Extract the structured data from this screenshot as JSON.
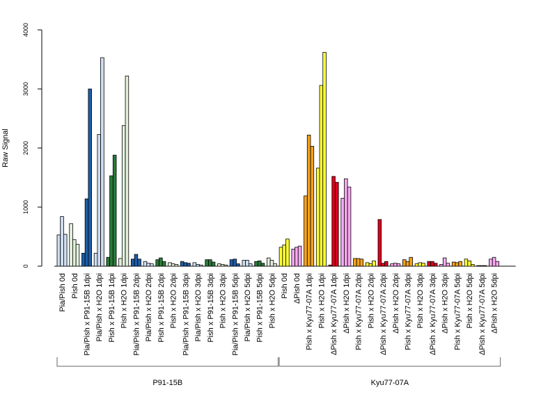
{
  "chart_data": {
    "type": "bar",
    "ylabel": "Raw Signal",
    "ylim": [
      0,
      4000
    ],
    "yticks": [
      "0",
      "1000",
      "2000",
      "3000",
      "4000"
    ],
    "bars_per_category": 3,
    "categories": [
      {
        "label": "Pia/Pish 0d",
        "values": [
          530,
          840,
          540
        ],
        "color": "#cfdef2"
      },
      {
        "label": "Pish 0d",
        "values": [
          720,
          450,
          370
        ],
        "color": "#e2f0dc"
      },
      {
        "label": "Pia/Pish x P91-15B 1dpi",
        "values": [
          220,
          1140,
          3000
        ],
        "color": "#1f5ea8"
      },
      {
        "label": "Pia/Pish x H2O 1dpi",
        "values": [
          220,
          2230,
          3530
        ],
        "color": "#cfdef2"
      },
      {
        "label": "Pish x P91-15B 1dpi",
        "values": [
          150,
          1530,
          1880
        ],
        "color": "#2b7a3b"
      },
      {
        "label": "Pish x H2O 1dpi",
        "values": [
          130,
          2380,
          3220
        ],
        "color": "#e2f0dc"
      },
      {
        "label": "Pia/Pish x P91-15B 2dpi",
        "values": [
          120,
          200,
          120
        ],
        "color": "#1f5ea8"
      },
      {
        "label": "Pia/Pish x H2O 2dpi",
        "values": [
          80,
          50,
          40
        ],
        "color": "#cfdef2"
      },
      {
        "label": "Pish x P91-15B 2dpi",
        "values": [
          110,
          140,
          80
        ],
        "color": "#2b7a3b"
      },
      {
        "label": "Pish x H2O 2dpi",
        "values": [
          60,
          40,
          30
        ],
        "color": "#e2f0dc"
      },
      {
        "label": "Pia/Pish x P91-15B 3dpi",
        "values": [
          80,
          60,
          50
        ],
        "color": "#1f5ea8"
      },
      {
        "label": "Pia/Pish x H2O 3dpi",
        "values": [
          60,
          30,
          20
        ],
        "color": "#cfdef2"
      },
      {
        "label": "Pish x P91-15B 3dpi",
        "values": [
          110,
          110,
          70
        ],
        "color": "#2b7a3b"
      },
      {
        "label": "Pish x H2O 3dpi",
        "values": [
          40,
          30,
          20
        ],
        "color": "#e2f0dc"
      },
      {
        "label": "Pia/Pish x P91-15B 5dpi",
        "values": [
          110,
          120,
          40
        ],
        "color": "#1f5ea8"
      },
      {
        "label": "Pia/Pish x H2O 5dpi",
        "values": [
          100,
          100,
          40
        ],
        "color": "#cfdef2"
      },
      {
        "label": "Pish x P91-15B 5dpi",
        "values": [
          80,
          90,
          50
        ],
        "color": "#2b7a3b"
      },
      {
        "label": "Pish x H2O 5dpi",
        "values": [
          140,
          100,
          40
        ],
        "color": "#e2f0dc"
      },
      {
        "label": "Pish 0d",
        "values": [
          320,
          360,
          460
        ],
        "color": "#ffff33"
      },
      {
        "label": "ΔPish 0d",
        "values": [
          290,
          320,
          340
        ],
        "color": "#f7a8f0"
      },
      {
        "label": "Pish x Kyu77-07A 1dpi",
        "values": [
          1190,
          2220,
          2030
        ],
        "color": "#f5a21b"
      },
      {
        "label": "Pish x H2O 1dpi",
        "values": [
          1660,
          3060,
          3620
        ],
        "color": "#ffff33"
      },
      {
        "label": "ΔPish x Kyu77-07A 1dpi",
        "values": [
          20,
          1520,
          1420
        ],
        "color": "#d9001e"
      },
      {
        "label": "ΔPish x H2O 1dpi",
        "values": [
          1150,
          1480,
          1340
        ],
        "color": "#f7a8f0"
      },
      {
        "label": "Pish x Kyu77-07A 2dpi",
        "values": [
          130,
          130,
          120
        ],
        "color": "#f5a21b"
      },
      {
        "label": "Pish x H2O 2dpi",
        "values": [
          60,
          40,
          90
        ],
        "color": "#ffff33"
      },
      {
        "label": "ΔPish x Kyu77-07A 2dpi",
        "values": [
          790,
          50,
          80
        ],
        "color": "#d9001e"
      },
      {
        "label": "ΔPish x H2O 2dpi",
        "values": [
          40,
          50,
          40
        ],
        "color": "#f7a8f0"
      },
      {
        "label": "Pish x Kyu77-07A 3dpi",
        "values": [
          110,
          80,
          150
        ],
        "color": "#f5a21b"
      },
      {
        "label": "Pish x H2O 3dpi",
        "values": [
          40,
          60,
          50
        ],
        "color": "#ffff33"
      },
      {
        "label": "ΔPish x Kyu77-07A 3dpi",
        "values": [
          80,
          80,
          50
        ],
        "color": "#d9001e"
      },
      {
        "label": "ΔPish x H2O 3dpi",
        "values": [
          30,
          140,
          50
        ],
        "color": "#f7a8f0"
      },
      {
        "label": "Pish x Kyu77-07A 5dpi",
        "values": [
          70,
          60,
          80
        ],
        "color": "#f5a21b"
      },
      {
        "label": "Pish x H2O 5dpi",
        "values": [
          120,
          90,
          30
        ],
        "color": "#ffff33"
      },
      {
        "label": "ΔPish x Kyu77-07A 5dpi",
        "values": [
          10,
          10,
          10
        ],
        "color": "#d9001e"
      },
      {
        "label": "ΔPish x H2O 5dpi",
        "values": [
          120,
          150,
          80
        ],
        "color": "#f7a8f0"
      }
    ],
    "groups": [
      {
        "label": "P91-15B",
        "start": 0,
        "end": 17
      },
      {
        "label": "Kyu77-07A",
        "start": 18,
        "end": 35
      }
    ],
    "grid": false
  }
}
